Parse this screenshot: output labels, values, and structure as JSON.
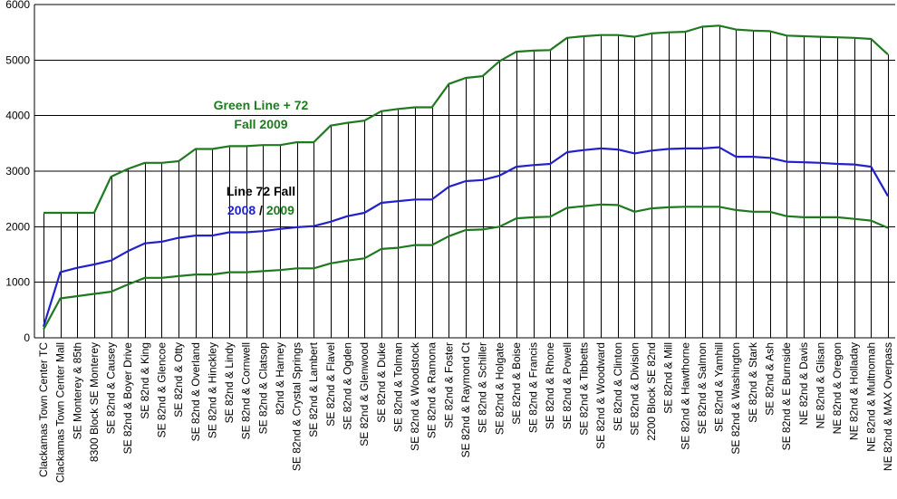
{
  "chart_data": {
    "type": "line",
    "ylim": [
      0,
      6000
    ],
    "yticks": [
      "0",
      "1000",
      "2000",
      "3000",
      "4000",
      "5000",
      "6000"
    ],
    "grid": true,
    "categories": [
      "Clackamas Town Center TC",
      "Clackamas Town Center Mall",
      "SE Monterey & 85th",
      "8300 Block SE Monterey",
      "SE 82nd & Causey",
      "SE 82nd & Boyer Drive",
      "SE 82nd & King",
      "SE 82nd & Glencoe",
      "SE 82nd & Otty",
      "SE 82nd & Overland",
      "SE 82nd & Hinckley",
      "SE 82nd & Lindy",
      "SE 82nd & Cornwell",
      "SE 82nd & Clatsop",
      "82nd & Harney",
      "SE 82nd & Crystal Springs",
      "SE 82nd & Lambert",
      "SE 82nd & Flavel",
      "SE 82nd & Ogden",
      "SE 82nd & Glenwood",
      "SE 82nd & Duke",
      "SE 82nd & Tolman",
      "SE 82nd & Woodstock",
      "SE 82nd & Ramona",
      "SE 82nd & Foster",
      "SE 82nd & Raymond Ct",
      "SE 82nd & Schiller",
      "SE 82nd & Holgate",
      "SE 82nd & Boise",
      "SE 82nd & Francis",
      "SE 82nd & Rhone",
      "SE 82nd & Powell",
      "SE 82nd & Tibbetts",
      "SE 82nd & Woodward",
      "SE 82nd & Clinton",
      "SE 82nd & Division",
      "2200 Block SE 82nd",
      "SE 82nd & Mill",
      "SE 82nd & Hawthorne",
      "SE 82nd & Salmon",
      "SE 82nd & Yamhill",
      "SE 82nd & Washington",
      "SE 82nd & Stark",
      "SE 82nd & Ash",
      "SE 82nd & E Burnside",
      "NE 82nd & Davis",
      "NE 82nd & Glisan",
      "NE 82nd & Oregon",
      "NE 82nd & Holladay",
      "NE 82nd & Multnomah",
      "NE 82nd & MAX Overpass"
    ],
    "series": [
      {
        "color": "#1f7a1f",
        "values": [
          2250,
          2250,
          2250,
          2250,
          2900,
          3040,
          3150,
          3150,
          3180,
          3400,
          3400,
          3450,
          3450,
          3470,
          3470,
          3520,
          3520,
          3820,
          3870,
          3910,
          4080,
          4120,
          4150,
          4150,
          4570,
          4680,
          4710,
          4980,
          5150,
          5170,
          5180,
          5400,
          5430,
          5450,
          5450,
          5420,
          5480,
          5500,
          5510,
          5600,
          5620,
          5550,
          5530,
          5520,
          5440,
          5430,
          5420,
          5410,
          5400,
          5380,
          5100
        ]
      },
      {
        "color": "#2222cc",
        "values": [
          200,
          1180,
          1260,
          1320,
          1390,
          1560,
          1700,
          1730,
          1800,
          1840,
          1840,
          1900,
          1900,
          1920,
          1960,
          1990,
          2010,
          2090,
          2190,
          2250,
          2430,
          2460,
          2490,
          2490,
          2720,
          2820,
          2840,
          2920,
          3080,
          3110,
          3130,
          3340,
          3380,
          3410,
          3390,
          3320,
          3370,
          3400,
          3410,
          3410,
          3430,
          3260,
          3260,
          3240,
          3170,
          3160,
          3150,
          3130,
          3120,
          3080,
          2550
        ]
      },
      {
        "color": "#1f7a1f",
        "values": [
          150,
          710,
          750,
          790,
          830,
          960,
          1080,
          1080,
          1110,
          1140,
          1140,
          1180,
          1180,
          1200,
          1220,
          1250,
          1250,
          1340,
          1390,
          1430,
          1600,
          1620,
          1670,
          1670,
          1830,
          1940,
          1950,
          2000,
          2150,
          2170,
          2180,
          2340,
          2370,
          2400,
          2390,
          2270,
          2330,
          2350,
          2360,
          2360,
          2360,
          2300,
          2270,
          2270,
          2190,
          2170,
          2170,
          2170,
          2140,
          2110,
          1980
        ]
      }
    ],
    "annotations": [
      {
        "lines": [
          {
            "text": "Green Line + 72",
            "color": "#1f7a1f"
          },
          {
            "text": "Fall 2009",
            "color": "#1f7a1f"
          }
        ]
      },
      {
        "lines": [
          {
            "text": "Line 72 Fall",
            "color": "#000000"
          },
          {
            "parts": [
              {
                "text": "2008",
                "color": "#2222cc"
              },
              {
                "text": " / ",
                "color": "#000000"
              },
              {
                "text": "2009",
                "color": "#1f7a1f"
              }
            ]
          }
        ]
      }
    ]
  }
}
